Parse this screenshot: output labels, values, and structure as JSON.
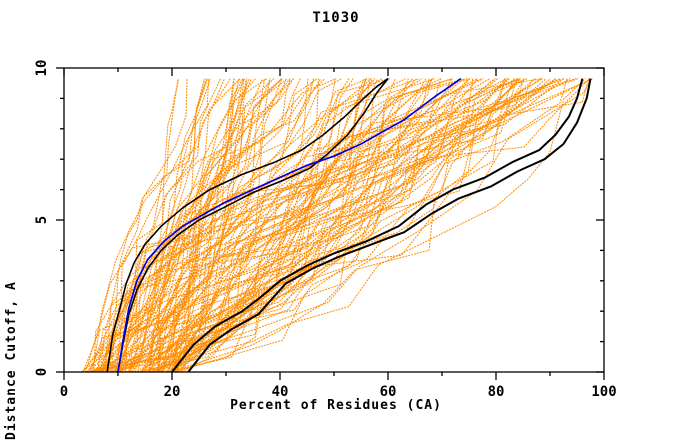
{
  "page": {
    "title": "T1030"
  },
  "chart_data": {
    "type": "line",
    "title": "T1030",
    "xlabel": "Percent of Residues (CA)",
    "ylabel": "Distance Cutoff, A",
    "xlim": [
      0,
      100
    ],
    "ylim": [
      0,
      10
    ],
    "x_major_ticks": [
      0,
      20,
      40,
      60,
      80,
      100
    ],
    "x_minor_step": 10,
    "y_major_ticks": [
      0,
      5,
      10
    ],
    "y_minor_step": 1,
    "grid": false,
    "legend": "none",
    "curve_top_cutoff": 9.65,
    "colors": {
      "ensemble": "#ff8c00",
      "highlight_blue": "#0000dd",
      "highlight_black": "#000000",
      "frame": "#000000",
      "background": "#ffffff"
    },
    "series": [
      {
        "name": "black-model-upper",
        "color": "#000000",
        "width": 1.6,
        "points": [
          [
            8,
            0
          ],
          [
            9,
            1.2
          ],
          [
            10.5,
            2.2
          ],
          [
            11.5,
            2.9
          ],
          [
            13,
            3.6
          ],
          [
            15,
            4.2
          ],
          [
            18,
            4.8
          ],
          [
            22,
            5.4
          ],
          [
            27,
            6.0
          ],
          [
            33,
            6.5
          ],
          [
            39,
            6.9
          ],
          [
            44,
            7.3
          ],
          [
            48,
            7.8
          ],
          [
            52,
            8.4
          ],
          [
            55.5,
            9.0
          ],
          [
            58,
            9.4
          ],
          [
            60,
            9.65
          ]
        ]
      },
      {
        "name": "black-model-lower",
        "color": "#000000",
        "width": 1.6,
        "points": [
          [
            10,
            0
          ],
          [
            11,
            1.0
          ],
          [
            12,
            1.9
          ],
          [
            13.5,
            2.7
          ],
          [
            15.5,
            3.4
          ],
          [
            18,
            4.0
          ],
          [
            21,
            4.5
          ],
          [
            25,
            5.0
          ],
          [
            29.5,
            5.4
          ],
          [
            35,
            5.9
          ],
          [
            40.5,
            6.3
          ],
          [
            45.5,
            6.7
          ],
          [
            49,
            7.2
          ],
          [
            52.5,
            7.8
          ],
          [
            55.5,
            8.5
          ],
          [
            58,
            9.2
          ],
          [
            60,
            9.65
          ]
        ]
      },
      {
        "name": "blue-model",
        "color": "#0000dd",
        "width": 1.7,
        "points": [
          [
            10,
            0
          ],
          [
            11,
            1.1
          ],
          [
            12,
            2.1
          ],
          [
            13.5,
            3.0
          ],
          [
            15.5,
            3.7
          ],
          [
            18.5,
            4.3
          ],
          [
            22,
            4.8
          ],
          [
            26,
            5.2
          ],
          [
            30,
            5.6
          ],
          [
            35,
            6.0
          ],
          [
            40,
            6.4
          ],
          [
            45,
            6.8
          ],
          [
            50,
            7.1
          ],
          [
            55,
            7.5
          ],
          [
            59,
            7.9
          ],
          [
            63,
            8.3
          ],
          [
            66,
            8.7
          ],
          [
            69,
            9.1
          ],
          [
            71.5,
            9.4
          ],
          [
            73.5,
            9.65
          ]
        ]
      },
      {
        "name": "black-model-right-upper",
        "color": "#000000",
        "width": 2,
        "points": [
          [
            20,
            0
          ],
          [
            24,
            0.9
          ],
          [
            28,
            1.5
          ],
          [
            33,
            2.0
          ],
          [
            36,
            2.4
          ],
          [
            40,
            3.0
          ],
          [
            45,
            3.5
          ],
          [
            50,
            3.9
          ],
          [
            56,
            4.3
          ],
          [
            62,
            4.8
          ],
          [
            67,
            5.5
          ],
          [
            72,
            6.0
          ],
          [
            78,
            6.4
          ],
          [
            83,
            6.9
          ],
          [
            88,
            7.3
          ],
          [
            91,
            7.8
          ],
          [
            93.5,
            8.4
          ],
          [
            95,
            9.0
          ],
          [
            96,
            9.65
          ]
        ]
      },
      {
        "name": "black-model-right-lower",
        "color": "#000000",
        "width": 2,
        "points": [
          [
            23,
            0
          ],
          [
            27,
            0.9
          ],
          [
            31,
            1.4
          ],
          [
            36,
            1.9
          ],
          [
            41,
            2.9
          ],
          [
            46,
            3.4
          ],
          [
            51,
            3.8
          ],
          [
            57,
            4.2
          ],
          [
            63,
            4.6
          ],
          [
            68,
            5.2
          ],
          [
            73,
            5.7
          ],
          [
            79,
            6.1
          ],
          [
            84,
            6.6
          ],
          [
            89,
            7.0
          ],
          [
            92.5,
            7.5
          ],
          [
            95,
            8.2
          ],
          [
            96.8,
            9.0
          ],
          [
            97.5,
            9.65
          ]
        ]
      }
    ],
    "ensemble_spec": {
      "color": "#ff8c00",
      "count": 140,
      "seed": 20117,
      "start_min": 3,
      "start_max": 22,
      "end_min": 18,
      "end_max": 98,
      "segments": 9,
      "y_top": 9.65
    }
  }
}
